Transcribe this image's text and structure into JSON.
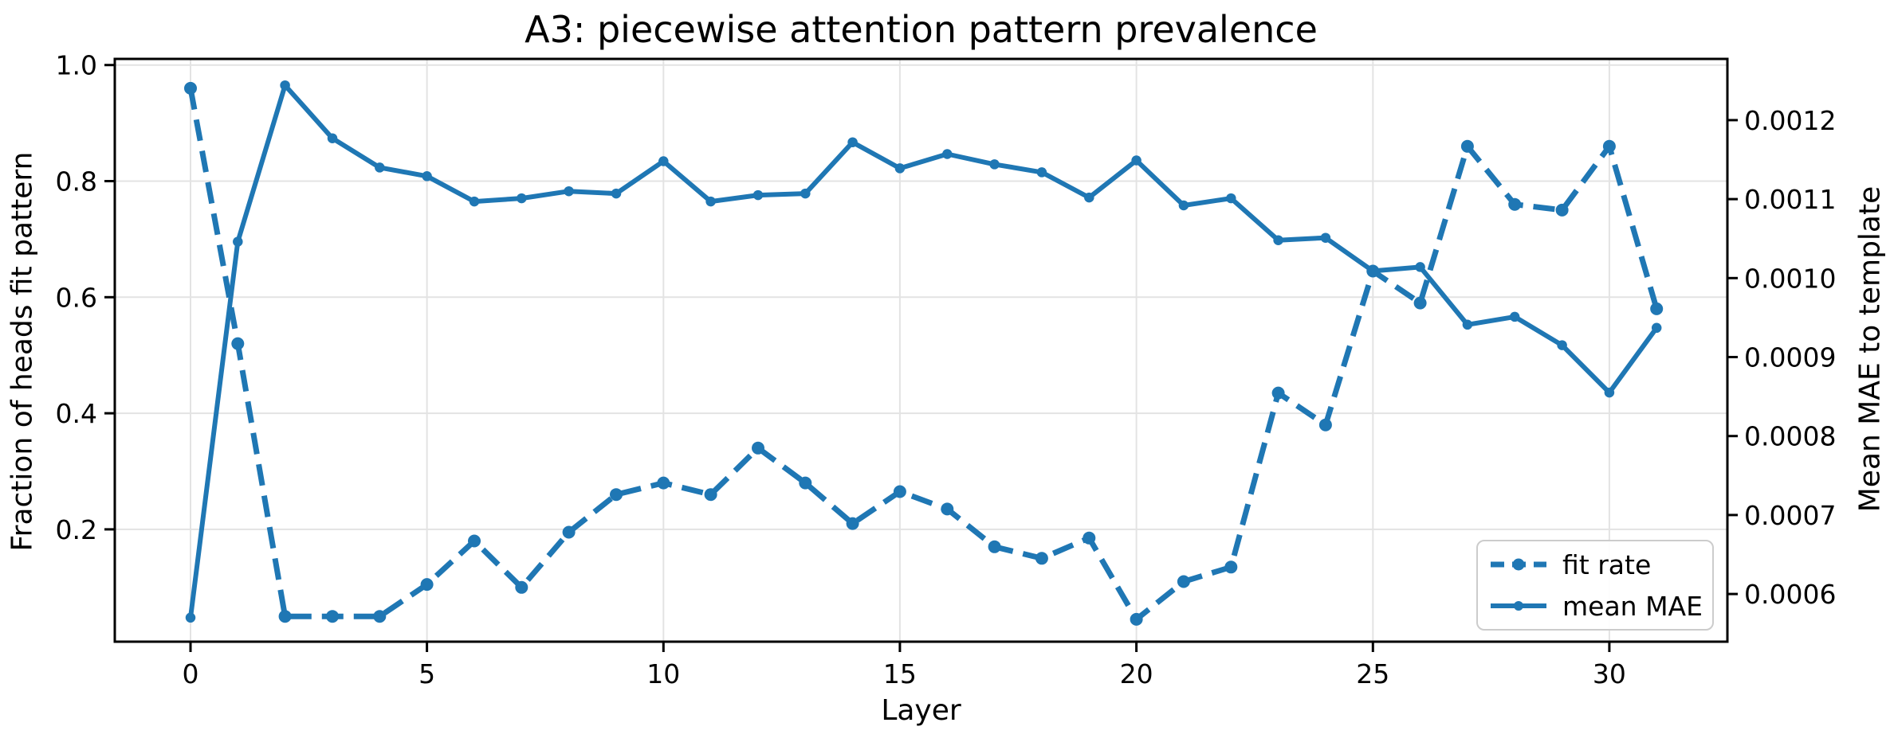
{
  "chart_data": {
    "type": "line",
    "title": "A3: piecewise attention pattern prevalence",
    "xlabel": "Layer",
    "ylabel_left": "Fraction of heads fit pattern",
    "ylabel_right": "Mean MAE to template",
    "layers": [
      0,
      1,
      2,
      3,
      4,
      5,
      6,
      7,
      8,
      9,
      10,
      11,
      12,
      13,
      14,
      15,
      16,
      17,
      18,
      19,
      20,
      21,
      22,
      23,
      24,
      25,
      26,
      27,
      28,
      29,
      30,
      31
    ],
    "series": [
      {
        "name": "fit rate",
        "axis": "left",
        "line_style": "dashed",
        "marker": "circle",
        "color": "#1f77b4",
        "values": [
          0.96,
          0.52,
          0.05,
          0.05,
          0.05,
          0.105,
          0.18,
          0.1,
          0.195,
          0.26,
          0.28,
          0.26,
          0.34,
          0.28,
          0.21,
          0.265,
          0.235,
          0.17,
          0.15,
          0.185,
          0.045,
          0.11,
          0.135,
          0.435,
          0.38,
          0.645,
          0.59,
          0.86,
          0.76,
          0.75,
          0.86,
          0.58
        ]
      },
      {
        "name": "mean MAE",
        "axis": "right",
        "line_style": "solid",
        "marker": "circle",
        "color": "#1f77b4",
        "values": [
          0.00057,
          0.001046,
          0.001244,
          0.001177,
          0.00114,
          0.001129,
          0.001097,
          0.001101,
          0.00111,
          0.001107,
          0.001148,
          0.001097,
          0.001105,
          0.001107,
          0.001172,
          0.001139,
          0.001157,
          0.001144,
          0.001134,
          0.001102,
          0.001149,
          0.001092,
          0.001101,
          0.001048,
          0.001051,
          0.001009,
          0.001014,
          0.000941,
          0.000951,
          0.000915,
          0.000855,
          0.000937
        ]
      }
    ],
    "x_axis": {
      "ticks": [
        0,
        5,
        10,
        15,
        20,
        25,
        30
      ],
      "tick_labels": [
        "0",
        "5",
        "10",
        "15",
        "20",
        "25",
        "30"
      ],
      "lim": [
        -1.601,
        32.496
      ]
    },
    "left_axis": {
      "tick_values": [
        1.0,
        0.8,
        0.6,
        0.4,
        0.2
      ],
      "tick_labels": [
        "1.0",
        "0.8",
        "0.6",
        "0.4",
        "0.2"
      ],
      "lim": [
        0.00644,
        1.01055
      ]
    },
    "right_axis": {
      "tick_values": [
        0.0012,
        0.0011,
        0.001,
        0.0009,
        0.0008,
        0.0007,
        0.0006
      ],
      "tick_labels": [
        "0.0012",
        "0.0011",
        "0.0010",
        "0.0009",
        "0.0008",
        "0.0007",
        "0.0006"
      ],
      "lim": [
        0.0005396,
        0.0012775
      ]
    },
    "grid": true,
    "legend": {
      "position": "lower right",
      "items": [
        {
          "label": "fit rate"
        },
        {
          "label": "mean MAE"
        }
      ]
    },
    "colors": {
      "series": "#1f77b4",
      "grid": "#e3e3e3",
      "spine": "#000000",
      "text": "#000000",
      "legend_border": "#cccccc",
      "background": "#ffffff"
    }
  }
}
